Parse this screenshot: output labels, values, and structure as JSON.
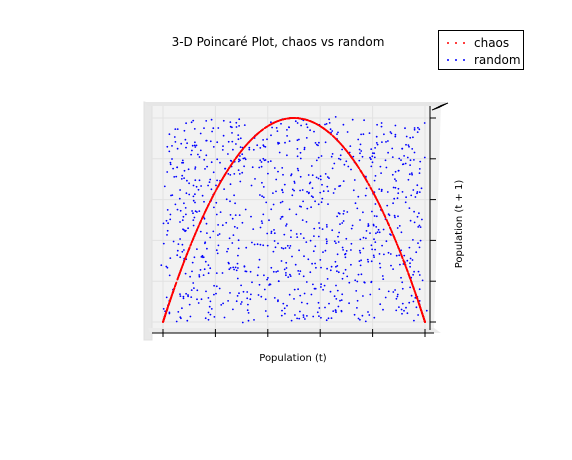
{
  "chart_data": {
    "type": "scatter",
    "title": "3-D Poincaré Plot, chaos vs random",
    "xlabel": "Population (t)",
    "ylabel": "Population (t + 1)",
    "xlim": [
      0,
      1
    ],
    "ylim": [
      0,
      1
    ],
    "legend_position": "top-right",
    "grid": true,
    "series": [
      {
        "name": "chaos",
        "color": "#ff0000",
        "marker": ".",
        "relation": "logistic map x(t+1) = 4 * x(t) * (1 - x(t))",
        "points": 2000
      },
      {
        "name": "random",
        "color": "#0000ff",
        "marker": ".",
        "distribution": "uniform on [0,1] x [0,1]",
        "points": 1000
      }
    ]
  }
}
